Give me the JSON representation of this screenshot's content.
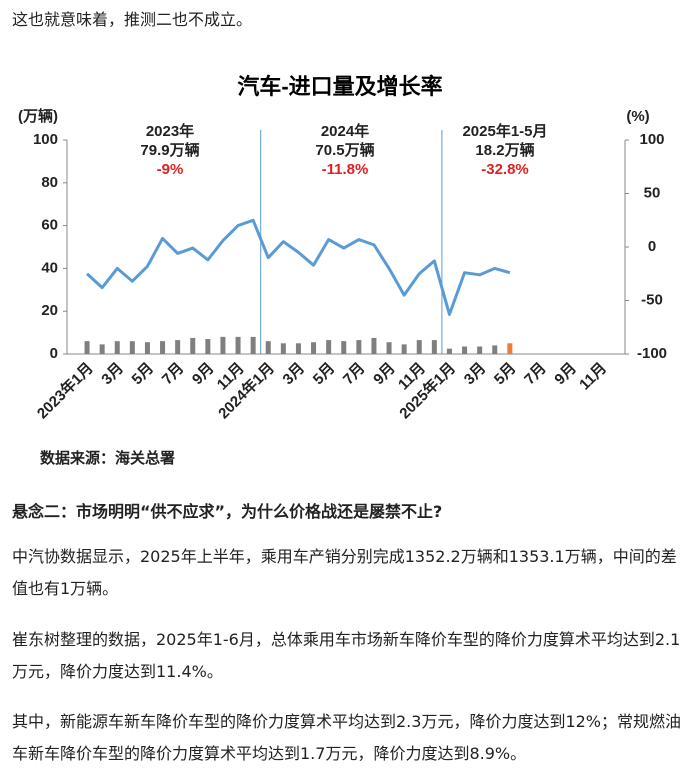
{
  "intro": "这也就意味着，推测二也不成立。",
  "chart_data": {
    "type": "bar-line",
    "title": "汽车-进口量及增长率",
    "ylabel": "(万辆)",
    "y2label": "(%)",
    "source": "数据来源：海关总署",
    "categories": [
      "2023年1月",
      null,
      "3月",
      null,
      "5月",
      null,
      "7月",
      null,
      "9月",
      null,
      "11月",
      null,
      "2024年1月",
      null,
      "3月",
      null,
      "5月",
      null,
      "7月",
      null,
      "9月",
      null,
      "11月",
      null,
      "2025年1月",
      null,
      "3月",
      null,
      "5月",
      null,
      "7月",
      null,
      "9月",
      null,
      "11月",
      null
    ],
    "ylim": [
      0,
      100
    ],
    "yticks": [
      0,
      20,
      40,
      60,
      80,
      100
    ],
    "y2lim": [
      -100,
      100
    ],
    "y2ticks": [
      -100,
      -50,
      0,
      50,
      100
    ],
    "series": [
      {
        "type": "bar",
        "axis": "y",
        "color": "#7f7f7f",
        "values": [
          6,
          4.5,
          6,
          6,
          5.5,
          6,
          6.5,
          7.5,
          7,
          8,
          8,
          8,
          6,
          5,
          5,
          5.5,
          6.5,
          6,
          6.5,
          7.5,
          5.5,
          4.5,
          6.5,
          6.5,
          2.5,
          3.5,
          3.5,
          4,
          5,
          null,
          null,
          null,
          null,
          null,
          null,
          null
        ],
        "colors": [
          "#7f7f7f",
          "#7f7f7f",
          "#7f7f7f",
          "#7f7f7f",
          "#7f7f7f",
          "#7f7f7f",
          "#7f7f7f",
          "#7f7f7f",
          "#7f7f7f",
          "#7f7f7f",
          "#7f7f7f",
          "#7f7f7f",
          "#7f7f7f",
          "#7f7f7f",
          "#7f7f7f",
          "#7f7f7f",
          "#7f7f7f",
          "#7f7f7f",
          "#7f7f7f",
          "#7f7f7f",
          "#7f7f7f",
          "#7f7f7f",
          "#7f7f7f",
          "#7f7f7f",
          "#7f7f7f",
          "#7f7f7f",
          "#7f7f7f",
          "#7f7f7f",
          "#ed7d31",
          null,
          null,
          null,
          null,
          null,
          null,
          null
        ]
      },
      {
        "type": "line",
        "axis": "y2",
        "color": "#5b9bd5",
        "values": [
          -25,
          -38,
          -20,
          -32,
          -18,
          8,
          -6,
          -1,
          -12,
          6,
          20,
          25,
          -10,
          5,
          -5,
          -17,
          7,
          -1,
          7,
          2,
          -20,
          -45,
          -25,
          -13,
          -63,
          -24,
          -26,
          -20,
          -24,
          null,
          null,
          null,
          null,
          null,
          null,
          null
        ]
      }
    ],
    "annotations": [
      {
        "title": "2023年",
        "volume": "79.9万辆",
        "change": "-9%"
      },
      {
        "title": "2024年",
        "volume": "70.5万辆",
        "change": "-11.8%"
      },
      {
        "title": "2025年1-5月",
        "volume": "18.2万辆",
        "change": "-32.8%"
      }
    ]
  },
  "heading": "悬念二：市场明明“供不应求”，为什么价格战还是屡禁不止?",
  "paragraphs": [
    "中汽协数据显示，2025年上半年，乘用车产销分别完成1352.2万辆和1353.1万辆，中间的差值也有1万辆。",
    "崔东树整理的数据，2025年1-6月，总体乘用车市场新车降价车型的降价力度算术平均达到2.1万元，降价力度达到11.4%。",
    "其中，新能源车新车降价车型的降价力度算术平均达到2.3万元，降价力度达到12%；常规燃油车新车降价车型的降价力度算术平均达到1.7万元，降价力度达到8.9%。"
  ]
}
